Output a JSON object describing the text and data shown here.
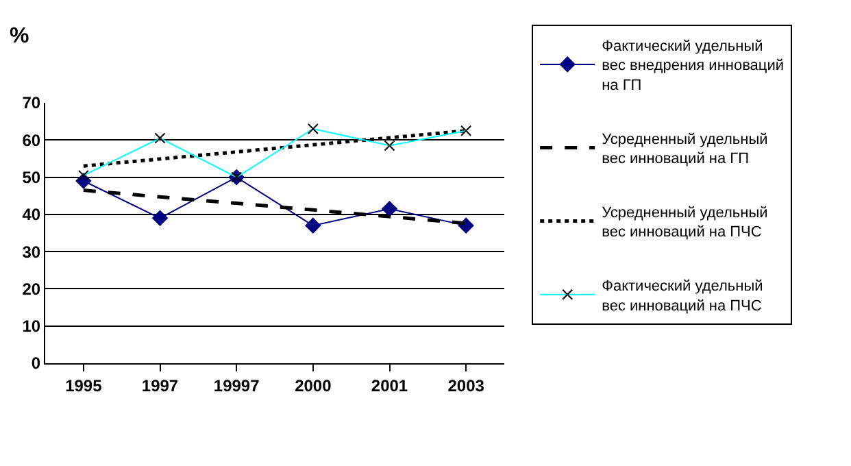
{
  "chart_data": {
    "type": "line",
    "ylabel": "%",
    "categories": [
      "1995",
      "1997",
      "19997",
      "2000",
      "2001",
      "2003"
    ],
    "series": [
      {
        "name": "Фактический удельный вес внедрения инноваций на ГП",
        "color": "#000080",
        "marker": "diamond",
        "line_style": "solid",
        "values": [
          49,
          39,
          50,
          37,
          41.5,
          37
        ]
      },
      {
        "name": "Усредненный удельный вес инноваций на ГП",
        "color": "#000000",
        "marker": "none",
        "line_style": "dashed",
        "values": [
          46.5,
          44.7,
          43.0,
          41.2,
          39.4,
          37.6
        ]
      },
      {
        "name": "Усредненный удельный вес инноваций на ПЧС",
        "color": "#000000",
        "marker": "none",
        "line_style": "dotted",
        "values": [
          53,
          54.9,
          56.8,
          58.7,
          60.6,
          62.5
        ]
      },
      {
        "name": "Фактический удельный вес инноваций на ПЧС",
        "color": "#00ffff",
        "marker": "cross",
        "line_style": "solid",
        "values": [
          50.5,
          60.5,
          50,
          63,
          58.5,
          62.5
        ]
      }
    ],
    "ylim": [
      0,
      70
    ],
    "yticks": [
      0,
      10,
      20,
      30,
      40,
      50,
      60,
      70
    ],
    "grid": "y",
    "legend": "right"
  }
}
